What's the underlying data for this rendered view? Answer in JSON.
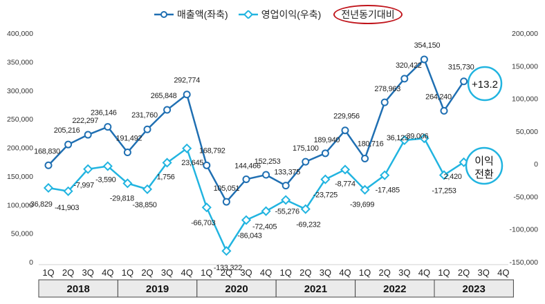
{
  "legend": {
    "revenue_label": "매출액(좌축)",
    "op_label": "영업이익(우축)",
    "yoy_label": "전년동기대비"
  },
  "colors": {
    "revenue": "#1f6fb2",
    "operating_income": "#21b4e0",
    "yoy_circle": "#c0141b",
    "annotation_circle": "#21b4e0"
  },
  "chart_data": {
    "type": "line",
    "title": "",
    "quarters": [
      "1Q",
      "2Q",
      "3Q",
      "4Q",
      "1Q",
      "2Q",
      "3Q",
      "4Q",
      "1Q",
      "2Q",
      "3Q",
      "4Q",
      "1Q",
      "2Q",
      "3Q",
      "4Q",
      "1Q",
      "2Q",
      "3Q",
      "4Q",
      "1Q",
      "2Q",
      "3Q",
      "4Q"
    ],
    "years": [
      "2018",
      "2019",
      "2020",
      "2021",
      "2022",
      "2023"
    ],
    "series": [
      {
        "name": "매출액(좌축)",
        "axis": "left",
        "values": [
          168830,
          205216,
          222297,
          236146,
          191492,
          231760,
          265848,
          292774,
          168792,
          105051,
          144466,
          152253,
          133375,
          175100,
          189940,
          229956,
          180716,
          278963,
          320422,
          354150,
          264240,
          315730,
          null,
          null
        ],
        "labels": [
          "168,830",
          "205,216",
          "222,297",
          "236,146",
          "191,492",
          "231,760",
          "265,848",
          "292,774",
          "168,792",
          "105,051",
          "144,466",
          "152,253",
          "133,375",
          "175,100",
          "189,940",
          "229,956",
          "180,716",
          "278,963",
          "320,422",
          "354,150",
          "264,240",
          "315,730",
          "",
          ""
        ]
      },
      {
        "name": "영업이익(우축)",
        "axis": "right",
        "values": [
          -36829,
          -41903,
          -7997,
          -3590,
          -29818,
          -38850,
          1756,
          23645,
          -66703,
          -133322,
          -86043,
          -72405,
          -55276,
          -69232,
          -23725,
          -8774,
          -39699,
          -17485,
          36123,
          39006,
          -17253,
          2420,
          null,
          null
        ],
        "labels": [
          "-36,829",
          "-41,903",
          "-7,997",
          "-3,590",
          "-29,818",
          "-38,850",
          "1,756",
          "23,645",
          "-66,703",
          "-133,322",
          "-86,043",
          "-72,405",
          "-55,276",
          "-69,232",
          "-23,725",
          "-8,774",
          "-39,699",
          "-17,485",
          "36,123",
          "39,006",
          "-17,253",
          "2,420",
          "",
          ""
        ]
      }
    ],
    "left_axis": {
      "min": 0,
      "max": 400000,
      "step": 50000,
      "tick_labels": [
        "0",
        "50,000",
        "100,000",
        "150,000",
        "200,000",
        "250,000",
        "300,000",
        "350,000",
        "400,000"
      ]
    },
    "right_axis": {
      "min": -150000,
      "max": 200000,
      "step": 50000,
      "tick_labels": [
        "-150,000",
        "-100,000",
        "-50,000",
        "0",
        "50,000",
        "100,000",
        "150,000",
        "200,000"
      ]
    },
    "annotations": [
      {
        "text": "+13.2",
        "series": "매출액(좌축)",
        "index": 21
      },
      {
        "text": "이익\n전환",
        "series": "영업이익(우축)",
        "index": 21
      }
    ]
  }
}
